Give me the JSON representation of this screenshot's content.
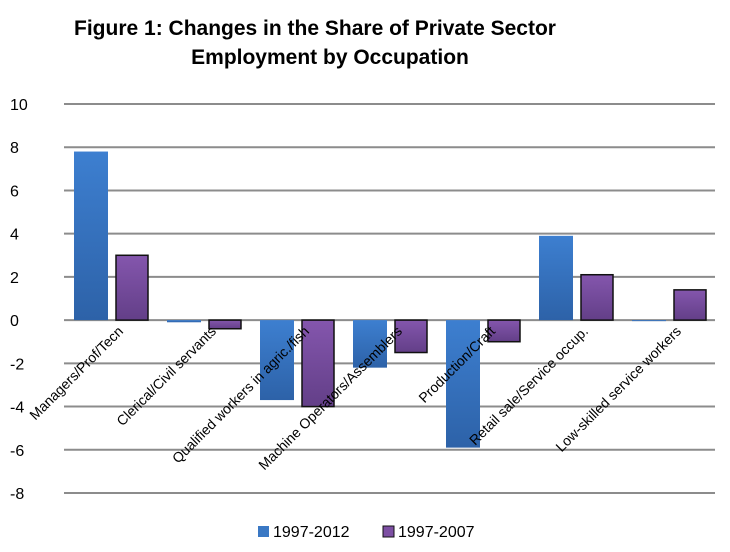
{
  "chart_data": {
    "type": "bar",
    "title_line1": "Figure 1: Changes in the Share of Private Sector",
    "title_line2": "Employment by Occupation",
    "categories": [
      "Managers/Prof/Tecn",
      "Clerical/Civil servants",
      "Qualified workers in agric./fish",
      "Machine Operators/Assemblers",
      "Production/Craft",
      "Retail sale/Service occup.",
      "Low-skilled service workers"
    ],
    "series": [
      {
        "name": "1997-2012",
        "values": [
          7.8,
          -0.1,
          -3.7,
          -2.2,
          -5.9,
          3.9,
          0
        ],
        "color": "#3a78c4"
      },
      {
        "name": "1997-2007",
        "values": [
          3.0,
          -0.4,
          -4.0,
          -1.5,
          -1.0,
          2.1,
          1.4
        ],
        "color": "#7d4fa3"
      }
    ],
    "ylim": [
      -8,
      10
    ],
    "yticks": [
      "10",
      "8",
      "6",
      "4",
      "2",
      "0",
      "-2",
      "-4",
      "-6",
      "-8"
    ],
    "grid": true,
    "legend": "bottom"
  }
}
